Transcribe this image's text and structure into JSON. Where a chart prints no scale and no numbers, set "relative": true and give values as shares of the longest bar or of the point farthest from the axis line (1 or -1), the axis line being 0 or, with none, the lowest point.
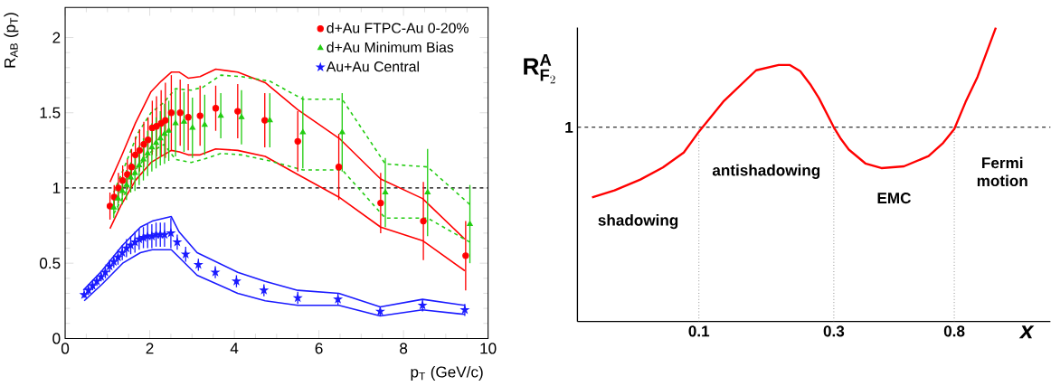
{
  "chart_data": [
    {
      "type": "scatter",
      "xlabel": "p$_{T}$ (GeV/c)",
      "ylabel": "R$_{AB}$ (p$_{T}$)",
      "xlim": [
        0,
        10
      ],
      "ylim": [
        0,
        2.2
      ],
      "xticks": [
        0,
        2,
        4,
        6,
        8,
        10
      ],
      "yticks": [
        0,
        0.5,
        1,
        1.5,
        2
      ],
      "legend": "top right",
      "grid": false,
      "ref_lines": [
        {
          "axis": "y",
          "value": 1,
          "color": "#000000",
          "line_style": "dashed"
        }
      ],
      "series": [
        {
          "name": "d+Au FTPC-Au 0-20%",
          "color": "#ff0000",
          "marker": "circle",
          "x": [
            1.06,
            1.16,
            1.26,
            1.36,
            1.47,
            1.57,
            1.66,
            1.76,
            1.86,
            1.96,
            2.06,
            2.16,
            2.27,
            2.37,
            2.51,
            2.72,
            2.91,
            3.19,
            3.56,
            4.08,
            4.72,
            5.5,
            6.47,
            7.46,
            8.47,
            9.47
          ],
          "values": [
            0.88,
            0.94,
            1.0,
            1.05,
            1.09,
            1.14,
            1.22,
            1.25,
            1.29,
            1.32,
            1.4,
            1.41,
            1.43,
            1.45,
            1.5,
            1.5,
            1.47,
            1.48,
            1.53,
            1.51,
            1.45,
            1.31,
            1.14,
            0.9,
            0.78,
            0.55
          ],
          "errors": [
            0.09,
            0.08,
            0.1,
            0.1,
            0.1,
            0.12,
            0.12,
            0.14,
            0.15,
            0.15,
            0.18,
            0.2,
            0.22,
            0.25,
            0.25,
            0.22,
            0.22,
            0.2,
            0.15,
            0.18,
            0.18,
            0.2,
            0.22,
            0.2,
            0.26,
            0.23
          ]
        },
        {
          "name": "d+Au Minimum Bias",
          "color": "#22cc11",
          "marker": "triangle",
          "x": [
            1.15,
            1.25,
            1.35,
            1.45,
            1.55,
            1.65,
            1.75,
            1.85,
            1.95,
            2.05,
            2.15,
            2.25,
            2.35,
            2.45,
            2.61,
            2.81,
            3.01,
            3.3,
            3.68,
            4.17,
            4.84,
            5.62,
            6.55,
            7.57,
            8.57,
            9.57
          ],
          "values": [
            0.87,
            0.93,
            0.98,
            1.02,
            1.07,
            1.1,
            1.15,
            1.19,
            1.23,
            1.27,
            1.3,
            1.33,
            1.36,
            1.38,
            1.43,
            1.44,
            1.4,
            1.42,
            1.48,
            1.47,
            1.45,
            1.37,
            1.37,
            0.97,
            0.97,
            0.76
          ],
          "errors": [
            0.07,
            0.08,
            0.09,
            0.1,
            0.1,
            0.12,
            0.13,
            0.14,
            0.15,
            0.16,
            0.17,
            0.18,
            0.2,
            0.2,
            0.22,
            0.2,
            0.2,
            0.2,
            0.15,
            0.18,
            0.18,
            0.24,
            0.26,
            0.23,
            0.29,
            0.26
          ]
        },
        {
          "name": "Au+Au Central",
          "color": "#1a1aff",
          "marker": "star",
          "x": [
            0.45,
            0.55,
            0.65,
            0.75,
            0.85,
            0.95,
            1.05,
            1.15,
            1.25,
            1.35,
            1.45,
            1.55,
            1.65,
            1.75,
            1.85,
            1.95,
            2.05,
            2.15,
            2.25,
            2.35,
            2.5,
            2.65,
            2.85,
            3.15,
            3.55,
            4.05,
            4.7,
            5.5,
            6.45,
            7.45,
            8.45,
            9.45
          ],
          "values": [
            0.29,
            0.32,
            0.35,
            0.38,
            0.41,
            0.44,
            0.48,
            0.51,
            0.54,
            0.57,
            0.6,
            0.62,
            0.64,
            0.66,
            0.67,
            0.68,
            0.68,
            0.69,
            0.69,
            0.69,
            0.7,
            0.64,
            0.56,
            0.49,
            0.44,
            0.38,
            0.32,
            0.27,
            0.26,
            0.18,
            0.22,
            0.19
          ],
          "errors": [
            0.02,
            0.03,
            0.03,
            0.03,
            0.03,
            0.04,
            0.04,
            0.04,
            0.05,
            0.05,
            0.06,
            0.06,
            0.07,
            0.07,
            0.07,
            0.08,
            0.08,
            0.08,
            0.08,
            0.08,
            0.1,
            0.05,
            0.05,
            0.04,
            0.04,
            0.04,
            0.04,
            0.04,
            0.04,
            0.03,
            0.04,
            0.04
          ]
        },
        {
          "type": "line",
          "color": "#ff0000",
          "marker": "none",
          "line_style": "solid",
          "x": [
            1.06,
            1.33,
            1.66,
            2.03,
            2.27,
            2.51,
            2.7,
            2.91,
            3.19,
            3.56,
            4.08,
            4.73,
            5.5,
            6.48,
            7.46,
            8.45,
            9.45
          ],
          "values": [
            1.04,
            1.21,
            1.43,
            1.64,
            1.71,
            1.77,
            1.77,
            1.73,
            1.74,
            1.79,
            1.77,
            1.7,
            1.52,
            1.33,
            1.06,
            0.93,
            0.66
          ]
        },
        {
          "type": "line",
          "color": "#ff0000",
          "marker": "none",
          "line_style": "solid",
          "x": [
            1.06,
            1.33,
            1.66,
            2.03,
            2.51,
            2.7,
            2.91,
            3.19,
            3.56,
            4.08,
            4.73,
            5.5,
            6.47,
            7.46,
            8.45,
            9.45
          ],
          "values": [
            0.73,
            0.89,
            1.05,
            1.17,
            1.25,
            1.24,
            1.22,
            1.22,
            1.26,
            1.25,
            1.21,
            1.09,
            0.94,
            0.74,
            0.65,
            0.45
          ]
        },
        {
          "type": "line",
          "color": "#22cc11",
          "marker": "none",
          "line_style": "dashed",
          "x": [
            1.15,
            1.43,
            1.71,
            2.03,
            2.34,
            2.61,
            2.98,
            3.26,
            3.68,
            4.17,
            4.84,
            5.62,
            6.55,
            7.57,
            8.57,
            9.57
          ],
          "values": [
            0.97,
            1.16,
            1.36,
            1.5,
            1.57,
            1.66,
            1.65,
            1.67,
            1.75,
            1.74,
            1.71,
            1.59,
            1.59,
            1.16,
            1.14,
            0.89
          ]
        },
        {
          "type": "line",
          "color": "#22cc11",
          "marker": "none",
          "line_style": "dashed",
          "x": [
            1.15,
            1.43,
            1.71,
            2.03,
            2.34,
            2.61,
            2.98,
            3.26,
            3.68,
            4.17,
            4.84,
            5.62,
            6.55,
            7.57,
            8.57,
            9.57
          ],
          "values": [
            0.83,
            0.97,
            1.14,
            1.24,
            1.29,
            1.19,
            1.17,
            1.19,
            1.23,
            1.22,
            1.18,
            1.12,
            1.12,
            0.8,
            0.8,
            0.64
          ]
        },
        {
          "type": "line",
          "color": "#1a1aff",
          "marker": "none",
          "line_style": "solid",
          "x": [
            0.43,
            0.87,
            1.36,
            1.78,
            2.06,
            2.51,
            2.69,
            3.12,
            4.08,
            4.73,
            5.5,
            6.47,
            7.45,
            8.45,
            9.45
          ],
          "values": [
            0.32,
            0.45,
            0.62,
            0.74,
            0.78,
            0.81,
            0.71,
            0.57,
            0.44,
            0.38,
            0.32,
            0.3,
            0.21,
            0.26,
            0.22
          ]
        },
        {
          "type": "line",
          "color": "#1a1aff",
          "marker": "none",
          "line_style": "solid",
          "x": [
            0.45,
            0.87,
            1.36,
            1.78,
            2.06,
            2.51,
            2.69,
            3.12,
            4.08,
            4.73,
            5.5,
            6.47,
            7.45,
            8.45,
            9.45
          ],
          "values": [
            0.25,
            0.36,
            0.5,
            0.57,
            0.59,
            0.59,
            0.54,
            0.42,
            0.3,
            0.25,
            0.22,
            0.22,
            0.15,
            0.19,
            0.16
          ]
        }
      ]
    },
    {
      "type": "line",
      "relative": true,
      "log": "x",
      "xlabel": "x",
      "ylabel": "\\mathbf{R}^{\\mathbf{A}}_{\\mathbf{F}_{2}}",
      "xlim": [
        0.0372,
        1.75
      ],
      "xticks": [
        0.1,
        0.3,
        0.8
      ],
      "color": "#ff0000",
      "x": [
        0.0419,
        0.0503,
        0.0621,
        0.0746,
        0.0884,
        0.1,
        0.1227,
        0.1594,
        0.1915,
        0.2099,
        0.2283,
        0.2489,
        0.2658,
        0.3,
        0.318,
        0.339,
        0.388,
        0.442,
        0.531,
        0.649,
        0.731,
        0.8,
        0.877,
        0.967,
        1.122
      ],
      "values": [
        0.422,
        0.446,
        0.483,
        0.524,
        0.575,
        0.646,
        0.751,
        0.855,
        0.873,
        0.873,
        0.852,
        0.804,
        0.76,
        0.661,
        0.621,
        0.585,
        0.538,
        0.522,
        0.528,
        0.563,
        0.608,
        0.655,
        0.747,
        0.833,
        1.0
      ],
      "ref_lines": [
        {
          "axis": "y",
          "value": 0.661,
          "label": "1",
          "color": "#000000",
          "line_style": "dashed"
        },
        {
          "axis": "x",
          "value": 0.1,
          "color": "#555555",
          "line_style": "dotted"
        },
        {
          "axis": "x",
          "value": 0.3,
          "color": "#555555",
          "line_style": "dotted"
        },
        {
          "axis": "x",
          "value": 0.8,
          "color": "#555555",
          "line_style": "dotted"
        }
      ],
      "annotations": [
        "shadowing",
        "antishadowing",
        "EMC",
        "Fermi motion"
      ]
    }
  ]
}
